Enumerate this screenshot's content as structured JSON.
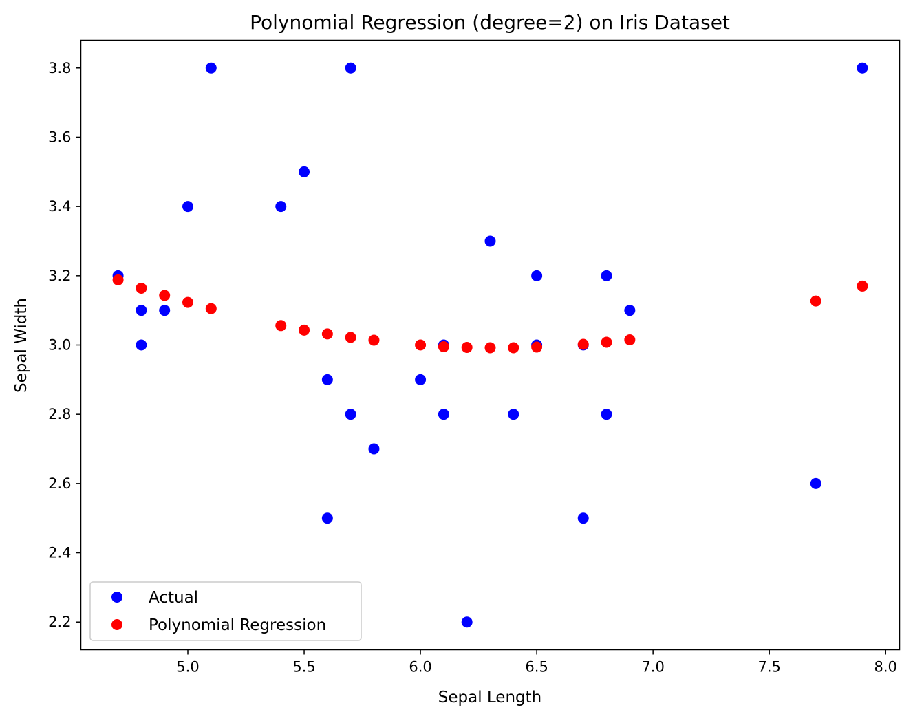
{
  "chart_data": {
    "type": "scatter",
    "title": "Polynomial Regression (degree=2) on Iris Dataset",
    "xlabel": "Sepal Length",
    "ylabel": "Sepal Width",
    "xlim": [
      4.54,
      8.06
    ],
    "ylim": [
      2.12,
      3.88
    ],
    "x_ticks": [
      "5.0",
      "5.5",
      "6.0",
      "6.5",
      "7.0",
      "7.5",
      "8.0"
    ],
    "y_ticks": [
      "2.2",
      "2.4",
      "2.6",
      "2.8",
      "3.0",
      "3.2",
      "3.4",
      "3.6",
      "3.8"
    ],
    "grid": false,
    "legend_position": "lower-left",
    "series": [
      {
        "name": "Actual",
        "color": "#0000ff",
        "x": [
          4.7,
          4.8,
          4.8,
          4.9,
          5.0,
          5.1,
          5.4,
          5.5,
          5.6,
          5.6,
          5.7,
          5.7,
          5.8,
          6.0,
          6.1,
          6.1,
          6.2,
          6.3,
          6.4,
          6.5,
          6.5,
          6.7,
          6.7,
          6.8,
          6.8,
          6.9,
          7.7,
          7.9
        ],
        "y": [
          3.2,
          3.1,
          3.0,
          3.1,
          3.4,
          3.8,
          3.4,
          3.5,
          2.9,
          2.5,
          3.8,
          2.8,
          2.7,
          2.9,
          3.0,
          2.8,
          2.2,
          3.3,
          2.8,
          3.2,
          3.0,
          3.0,
          2.5,
          3.2,
          2.8,
          3.1,
          2.6,
          3.8
        ]
      },
      {
        "name": "Polynomial Regression",
        "color": "#ff0000",
        "x": [
          4.7,
          4.8,
          4.9,
          5.0,
          5.1,
          5.4,
          5.5,
          5.6,
          5.7,
          5.8,
          6.0,
          6.1,
          6.2,
          6.3,
          6.4,
          6.5,
          6.7,
          6.8,
          6.9,
          7.7,
          7.9
        ],
        "y": [
          3.188,
          3.164,
          3.143,
          3.123,
          3.105,
          3.056,
          3.043,
          3.032,
          3.022,
          3.014,
          3.0,
          2.995,
          2.993,
          2.992,
          2.992,
          2.994,
          3.002,
          3.008,
          3.015,
          3.127,
          3.17
        ]
      }
    ]
  }
}
